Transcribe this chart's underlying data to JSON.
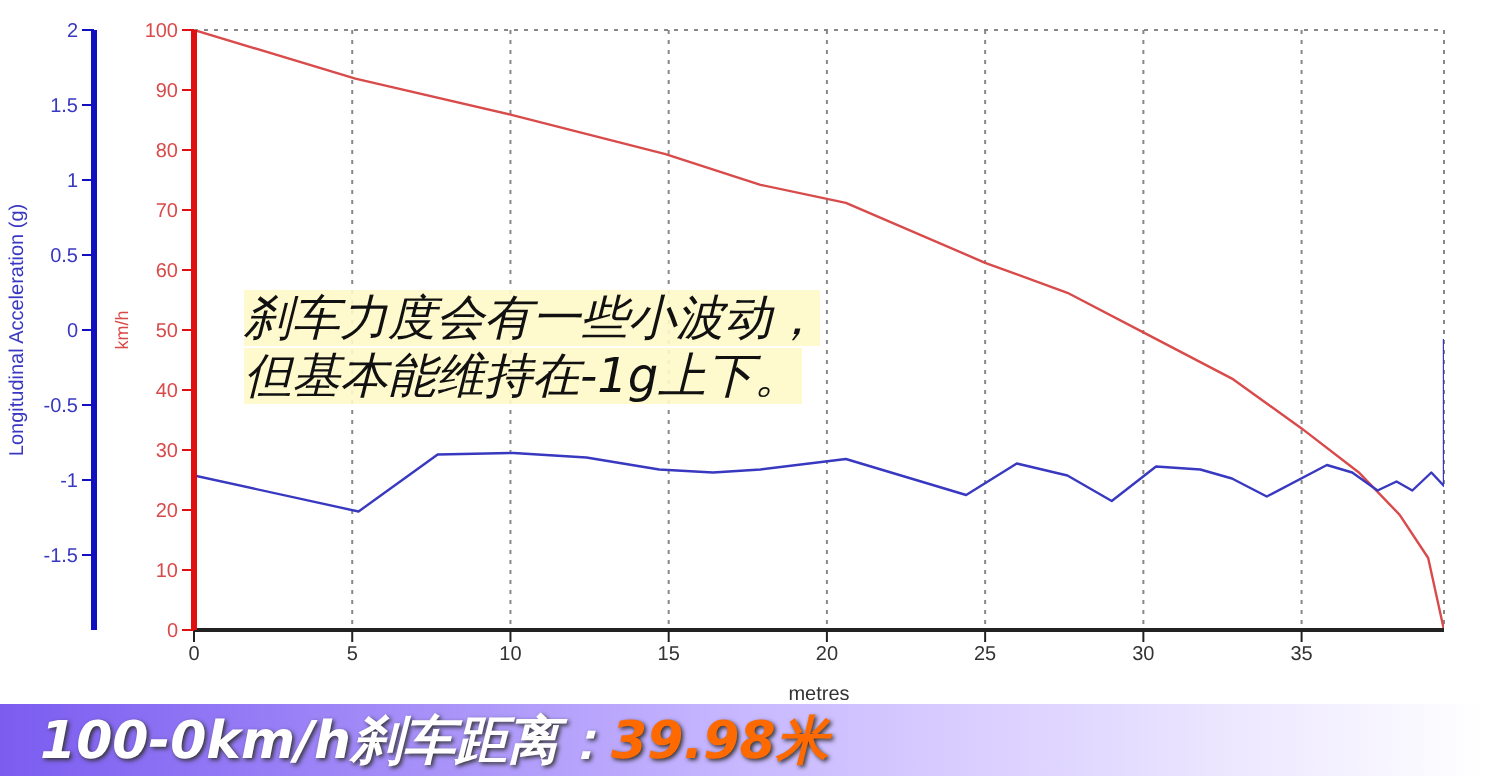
{
  "chart_data": {
    "type": "line",
    "xlabel": "metres",
    "ylabel": "km/h",
    "y2label": "Longitudinal Acceleration (g)",
    "annotations": [
      "刹车力度会有一些小波动，",
      "但基本能维持在-1g上下。",
      "100-0km/h刹车距离：",
      "39.98米"
    ],
    "xlim": [
      0,
      39.5
    ],
    "xticks": [
      0,
      5,
      10,
      15,
      20,
      25,
      30,
      35
    ],
    "ylim": [
      0,
      100
    ],
    "yticks": [
      0,
      10,
      20,
      30,
      40,
      50,
      60,
      70,
      80,
      90,
      100
    ],
    "y2lim": [
      -2,
      2
    ],
    "y2ticks": [
      -1.5,
      -1,
      -0.5,
      0,
      0.5,
      1,
      1.5,
      2
    ],
    "grid": true,
    "marker": "none",
    "line_style": "solid",
    "series": [
      {
        "color": "#d94a4a",
        "x": [
          0,
          5.1,
          10,
          14.9,
          17.9,
          20.6,
          25,
          27.6,
          30,
          32.8,
          35,
          36.8,
          38.1,
          39,
          39.5
        ],
        "values": [
          100,
          91.9,
          85.9,
          79.3,
          74.2,
          71.2,
          61.2,
          56.2,
          49.6,
          41.9,
          33.6,
          26.3,
          19.2,
          12,
          0
        ]
      },
      {
        "color": "#3838c0",
        "axis": "y2",
        "x": [
          0,
          5.2,
          7.7,
          10.1,
          12.4,
          14.7,
          16.4,
          17.9,
          20.6,
          24.4,
          26,
          27.6,
          29,
          30.4,
          31.8,
          32.8,
          33.9,
          35.8,
          36.6,
          37.4,
          38,
          38.5,
          39.1,
          39.5,
          39.5
        ],
        "values": [
          -0.97,
          -1.21,
          -0.83,
          -0.82,
          -0.85,
          -0.93,
          -0.95,
          -0.93,
          -0.86,
          -1.1,
          -0.89,
          -0.97,
          -1.14,
          -0.91,
          -0.93,
          -0.99,
          -1.11,
          -0.9,
          -0.95,
          -1.07,
          -1.01,
          -1.07,
          -0.95,
          -1.04,
          -0.06
        ]
      }
    ]
  }
}
